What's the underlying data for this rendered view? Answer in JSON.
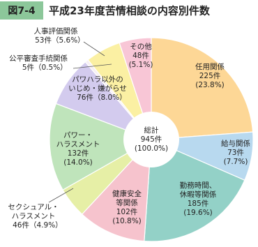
{
  "chart_data": {
    "type": "pie",
    "figure_label": "図7-4",
    "title": "平成23年度苦情相談の内容別件数",
    "categories": [
      "任用関係",
      "給与関係",
      "勤務時間、\n休暇等関係",
      "健康安全\n等関係",
      "セクシュアル・\nハラスメント",
      "パワー・\nハラスメント",
      "パワハラ以外の\nいじめ・嫌がらせ",
      "公平審査手続関係",
      "人事評価関係",
      "その他"
    ],
    "values": [
      225,
      73,
      185,
      102,
      46,
      132,
      76,
      5,
      53,
      48
    ],
    "value_labels": [
      "225件",
      "73件",
      "185件",
      "102件",
      "46件",
      "132件",
      "76件",
      "5件",
      "53件",
      "48件"
    ],
    "percent_labels": [
      "(23.8%)",
      "(7.7%)",
      "(19.6%)",
      "(10.8%)",
      "（4.9%）",
      "(14.0%)",
      "（8.0%）",
      "（0.5%）",
      "（5.6%）",
      "(5.1%)"
    ],
    "colors": [
      "#fdd796",
      "#b8d9ef",
      "#93d1c7",
      "#f6c3cd",
      "#e6efa6",
      "#bfe4bb",
      "#d3cbee",
      "#f7f0f4",
      "#fbf0a3",
      "#f8c6d6"
    ],
    "total_label": "総計",
    "total": 945,
    "total_value_label": "945件",
    "total_percent_label": "(100.0%)"
  }
}
